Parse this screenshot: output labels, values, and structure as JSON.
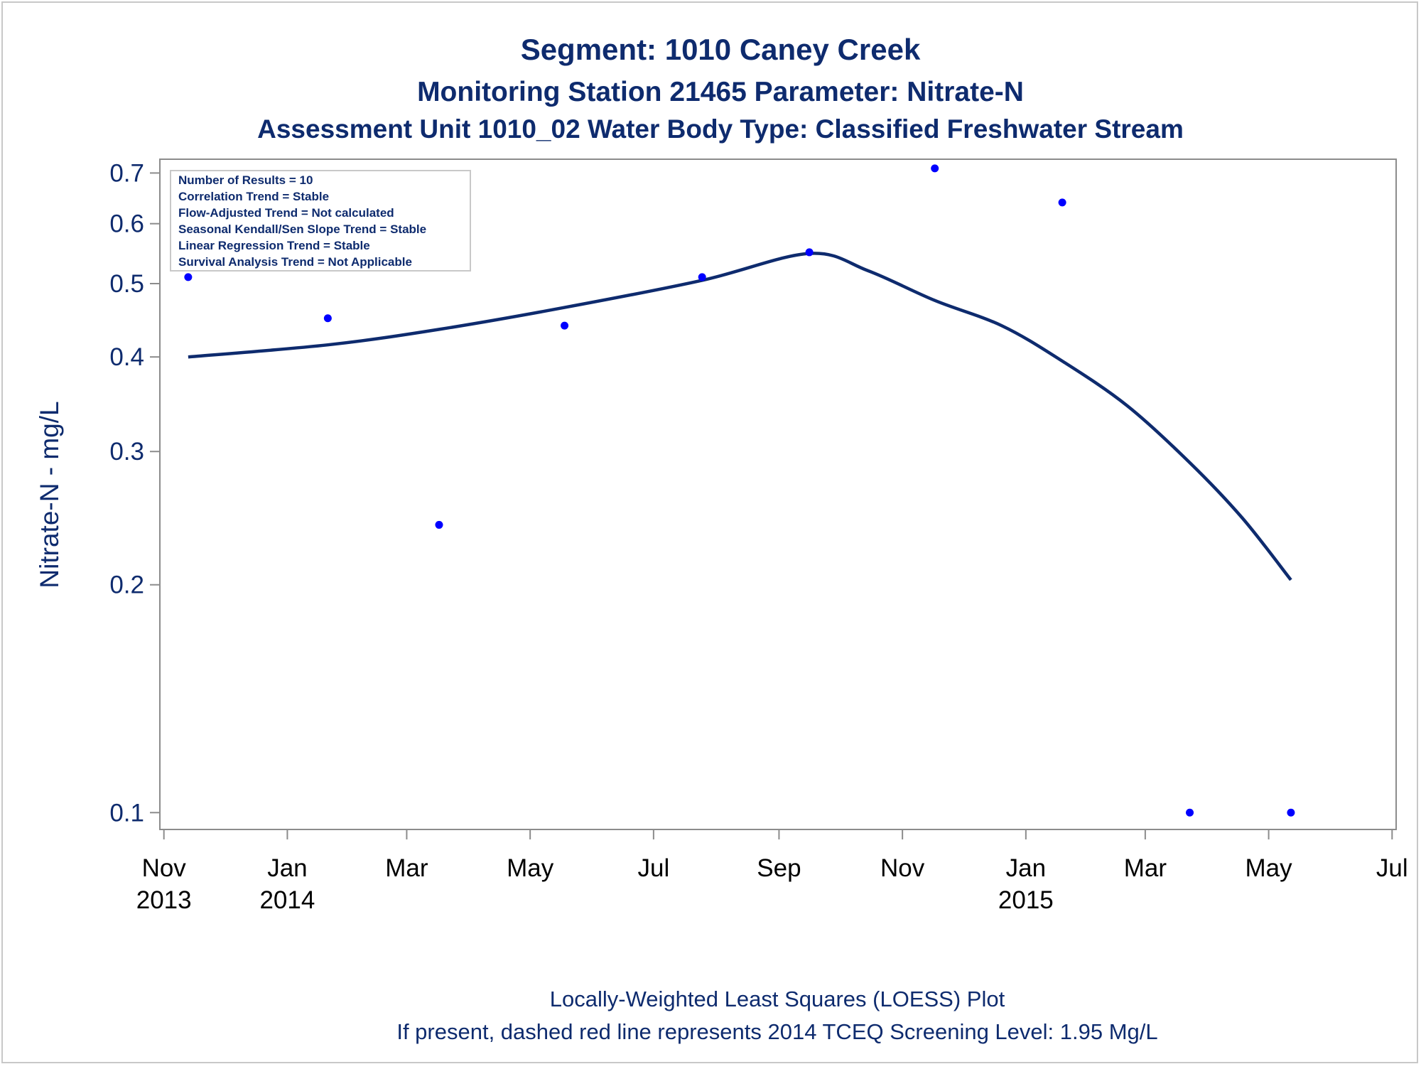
{
  "titles": [
    "Segment: 1010  Caney Creek",
    "Monitoring Station 21465 Parameter: Nitrate-N",
    "Assessment Unit 1010_02   Water Body Type: Classified Freshwater Stream"
  ],
  "footnotes": [
    "Locally-Weighted Least Squares (LOESS) Plot",
    "If present, dashed red line represents 2014 TCEQ Screening Level: 1.95 Mg/L"
  ],
  "inset_lines": [
    "Number of Results = 10",
    "Correlation Trend = Stable",
    "Flow-Adjusted Trend = Not calculated",
    "Seasonal Kendall/Sen Slope Trend = Stable",
    "Linear Regression Trend = Stable",
    "Survival Analysis Trend = Not Applicable"
  ],
  "colors": {
    "text": "#0e2b6e",
    "loess_line": "#0e2b6e",
    "points": "#0000ff",
    "axis": "#8c8c8c"
  },
  "chart_data": {
    "type": "scatter",
    "ylabel": "Nitrate-N - mg/L",
    "yscale": "log",
    "ylim": [
      0.095,
      0.73
    ],
    "xlim": [
      "2013-10-30",
      "2015-07-03"
    ],
    "y_ticks": [
      {
        "value": 0.1,
        "label": "0.1"
      },
      {
        "value": 0.2,
        "label": "0.2"
      },
      {
        "value": 0.3,
        "label": "0.3"
      },
      {
        "value": 0.4,
        "label": "0.4"
      },
      {
        "value": 0.5,
        "label": "0.5"
      },
      {
        "value": 0.6,
        "label": "0.6"
      },
      {
        "value": 0.7,
        "label": "0.7"
      }
    ],
    "x_ticks": [
      {
        "date": "2013-11-01",
        "label": "Nov",
        "year": "2013"
      },
      {
        "date": "2014-01-01",
        "label": "Jan",
        "year": "2014"
      },
      {
        "date": "2014-03-01",
        "label": "Mar",
        "year": ""
      },
      {
        "date": "2014-05-01",
        "label": "May",
        "year": ""
      },
      {
        "date": "2014-07-01",
        "label": "Jul",
        "year": ""
      },
      {
        "date": "2014-09-01",
        "label": "Sep",
        "year": ""
      },
      {
        "date": "2014-11-01",
        "label": "Nov",
        "year": ""
      },
      {
        "date": "2015-01-01",
        "label": "Jan",
        "year": "2015"
      },
      {
        "date": "2015-03-01",
        "label": "Mar",
        "year": ""
      },
      {
        "date": "2015-05-01",
        "label": "May",
        "year": ""
      },
      {
        "date": "2015-07-01",
        "label": "Jul",
        "year": ""
      }
    ],
    "points": [
      {
        "date": "2013-11-13",
        "value": 0.51
      },
      {
        "date": "2014-01-21",
        "value": 0.45
      },
      {
        "date": "2014-03-17",
        "value": 0.24
      },
      {
        "date": "2014-05-18",
        "value": 0.44
      },
      {
        "date": "2014-07-25",
        "value": 0.51
      },
      {
        "date": "2014-09-16",
        "value": 0.55
      },
      {
        "date": "2014-11-17",
        "value": 0.71
      },
      {
        "date": "2015-01-19",
        "value": 0.64
      },
      {
        "date": "2015-03-23",
        "value": 0.1
      },
      {
        "date": "2015-05-12",
        "value": 0.1
      }
    ],
    "loess_line": [
      {
        "date": "2013-11-13",
        "value": 0.4
      },
      {
        "date": "2014-01-21",
        "value": 0.415
      },
      {
        "date": "2014-03-17",
        "value": 0.435
      },
      {
        "date": "2014-05-18",
        "value": 0.465
      },
      {
        "date": "2014-07-25",
        "value": 0.505
      },
      {
        "date": "2014-09-16",
        "value": 0.548
      },
      {
        "date": "2014-10-15",
        "value": 0.52
      },
      {
        "date": "2014-11-17",
        "value": 0.475
      },
      {
        "date": "2014-12-20",
        "value": 0.44
      },
      {
        "date": "2015-01-19",
        "value": 0.395
      },
      {
        "date": "2015-02-20",
        "value": 0.345
      },
      {
        "date": "2015-03-23",
        "value": 0.29
      },
      {
        "date": "2015-04-18",
        "value": 0.245
      },
      {
        "date": "2015-05-12",
        "value": 0.203
      }
    ],
    "legend": "none"
  }
}
